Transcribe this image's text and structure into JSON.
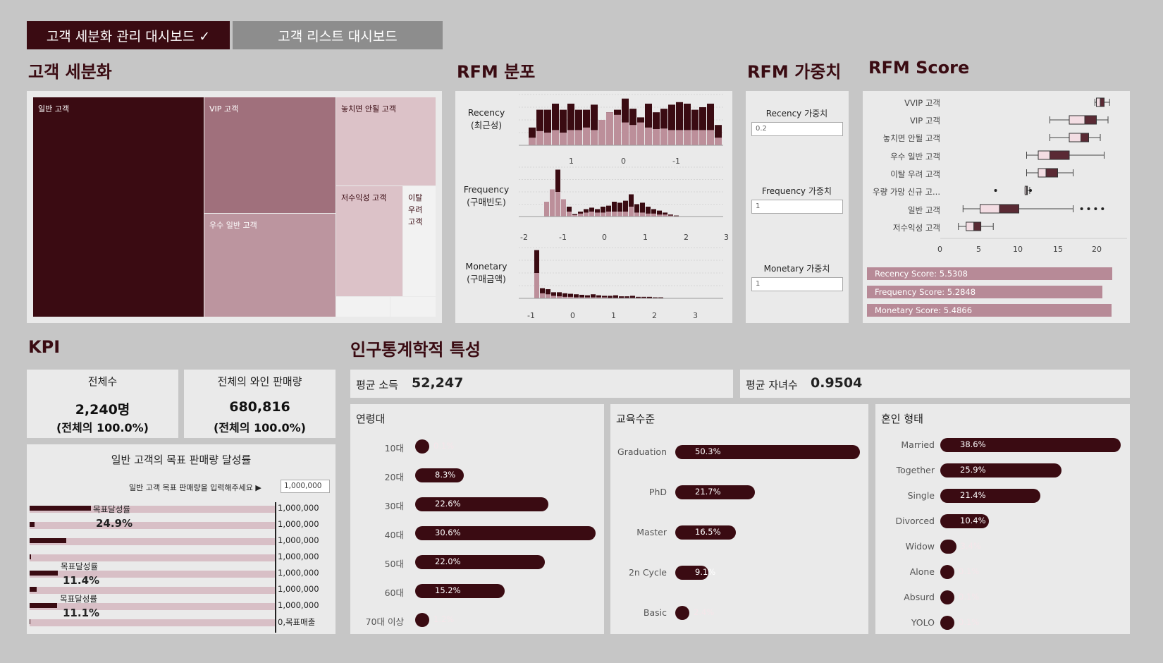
{
  "tabs": [
    {
      "label": "고객 세분화 관리 대시보드 ✓"
    },
    {
      "label": "고객 리스트 대시보드"
    }
  ],
  "sections": {
    "segmentation": "고객 세분화",
    "rfm_dist": "RFM 분포",
    "rfm_weight": "RFM 가중치",
    "rfm_score": "RFM Score",
    "kpi": "KPI",
    "demographics": "인구통계학적 특성"
  },
  "treemap": {
    "cells": [
      "일반 고객",
      "VIP 고객",
      "놓치면 안될 고객",
      "우수 일반 고객",
      "저수익성 고객",
      "이탈 우려 고객"
    ]
  },
  "rfm_dist": {
    "recency_label": "Recency\n(최근성)",
    "frequency_label": "Frequency\n(구매빈도)",
    "monetary_label": "Monetary\n(구매금액)",
    "recency_ticks": [
      "1",
      "0",
      "-1"
    ],
    "frequency_ticks": [
      "-2",
      "-1",
      "0",
      "1",
      "2",
      "3"
    ],
    "monetary_ticks": [
      "-1",
      "0",
      "1",
      "2",
      "3"
    ]
  },
  "weights": {
    "recency_label": "Recency 가중치",
    "recency_value": "0.2",
    "frequency_label": "Frequency 가중치",
    "frequency_value": "1",
    "monetary_label": "Monetary 가중치",
    "monetary_value": "1"
  },
  "rfm_score": {
    "rows": [
      "VVIP 고객",
      "VIP 고객",
      "놓치면 안될 고객",
      "우수 일반 고객",
      "이탈 우려 고객",
      "우량 가망 신규 고...",
      "일반 고객",
      "저수익성 고객"
    ],
    "ticks": [
      "0",
      "5",
      "10",
      "15",
      "20"
    ],
    "recency_score": "Recency Score: 5.5308",
    "frequency_score": "Frequency Score: 5.2848",
    "monetary_score": "Monetary Score: 5.4866",
    "bar_fractions": [
      0.99,
      0.95,
      0.985
    ]
  },
  "kpi": {
    "total_title": "전체수",
    "total_value": "2,240명",
    "total_pct": "(전체의 100.0%)",
    "wine_title": "전체의 와인 판매량",
    "wine_value": "680,816",
    "wine_pct": "(전체의 100.0%)",
    "target_title": "일반 고객의 목표 판매량 달성률",
    "target_prompt": "일반 고객 목표 판매량을 입력해주세요 ▶",
    "target_input": "1,000,000",
    "rows": [
      {
        "value": "1,000,000",
        "fill": 0.249
      },
      {
        "value": "1,000,000",
        "fill": 0.02
      },
      {
        "value": "1,000,000",
        "fill": 0.15
      },
      {
        "value": "1,000,000",
        "fill": 0.005
      },
      {
        "value": "1,000,000",
        "fill": 0.114
      },
      {
        "value": "1,000,000",
        "fill": 0.03
      },
      {
        "value": "1,000,000",
        "fill": 0.111
      },
      {
        "value": "0,목표매출",
        "fill": 0.003
      }
    ],
    "achieve_label": "목표달성률",
    "achieve_1": "24.9%",
    "achieve_2": "11.4%",
    "achieve_3": "11.1%"
  },
  "demo": {
    "income_label": "평균 소득",
    "income_value": "52,247",
    "kids_label": "평균 자녀수",
    "kids_value": "0.9504",
    "age": {
      "title": "연령대",
      "items": [
        {
          "label": "10대",
          "value": "0.1%",
          "pct": 0.1
        },
        {
          "label": "20대",
          "value": "8.3%",
          "pct": 8.3
        },
        {
          "label": "30대",
          "value": "22.6%",
          "pct": 22.6
        },
        {
          "label": "40대",
          "value": "30.6%",
          "pct": 30.6
        },
        {
          "label": "50대",
          "value": "22.0%",
          "pct": 22.0
        },
        {
          "label": "60대",
          "value": "15.2%",
          "pct": 15.2
        },
        {
          "label": "70대 이상",
          "value": "1.2%",
          "pct": 1.2
        }
      ]
    },
    "edu": {
      "title": "교육수준",
      "items": [
        {
          "label": "Graduation",
          "value": "50.3%",
          "pct": 50.3
        },
        {
          "label": "PhD",
          "value": "21.7%",
          "pct": 21.7
        },
        {
          "label": "Master",
          "value": "16.5%",
          "pct": 16.5
        },
        {
          "label": "2n Cycle",
          "value": "9.1%",
          "pct": 9.1
        },
        {
          "label": "Basic",
          "value": "2.4%",
          "pct": 2.4
        }
      ]
    },
    "marital": {
      "title": "혼인 형태",
      "items": [
        {
          "label": "Married",
          "value": "38.6%",
          "pct": 38.6
        },
        {
          "label": "Together",
          "value": "25.9%",
          "pct": 25.9
        },
        {
          "label": "Single",
          "value": "21.4%",
          "pct": 21.4
        },
        {
          "label": "Divorced",
          "value": "10.4%",
          "pct": 10.4
        },
        {
          "label": "Widow",
          "value": "3.4%",
          "pct": 3.4
        },
        {
          "label": "Alone",
          "value": "0.1%",
          "pct": 0.1
        },
        {
          "label": "Absurd",
          "value": "0.1%",
          "pct": 0.1
        },
        {
          "label": "YOLO",
          "value": "0.1%",
          "pct": 0.1
        }
      ]
    }
  },
  "colors": {
    "dark": "#3a0b12",
    "mid": "#a0707c",
    "light": "#d8bfc6",
    "panel": "#eaeaea"
  }
}
